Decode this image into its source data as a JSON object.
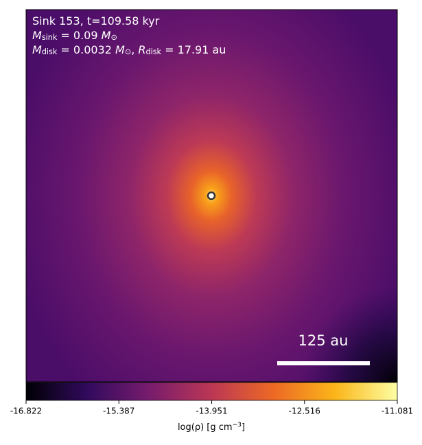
{
  "chart_data": {
    "type": "density-map",
    "annotations": [
      [
        {
          "text": "Sink 153, t=109.58 kyr"
        }
      ],
      [
        {
          "text": "M",
          "italic": true
        },
        {
          "text": "sink",
          "sub": true
        },
        {
          "text": " = 0.09 "
        },
        {
          "text": "M",
          "italic": true
        },
        {
          "text": "⊙",
          "sub": true
        }
      ],
      [
        {
          "text": "M",
          "italic": true
        },
        {
          "text": "disk",
          "sub": true
        },
        {
          "text": " = 0.0032 "
        },
        {
          "text": "M",
          "italic": true
        },
        {
          "text": "⊙",
          "sub": true
        },
        {
          "text": ", "
        },
        {
          "text": "R",
          "italic": true
        },
        {
          "text": "disk",
          "sub": true
        },
        {
          "text": " = 17.91 au"
        }
      ]
    ],
    "scale_bar_label": "125 au",
    "colorbar_label": [
      {
        "text": "log(ρ) [g cm"
      },
      {
        "text": "−3",
        "sup": true
      },
      {
        "text": "]"
      }
    ],
    "clim": [
      -16.822,
      -11.081
    ],
    "cticks": [
      -16.822,
      -15.387,
      -13.951,
      -12.516,
      -11.081
    ],
    "colormap": [
      "#000004",
      "#320a5e",
      "#781c6d",
      "#bb3754",
      "#ed6925",
      "#fbb61a",
      "#fcffa4"
    ]
  }
}
